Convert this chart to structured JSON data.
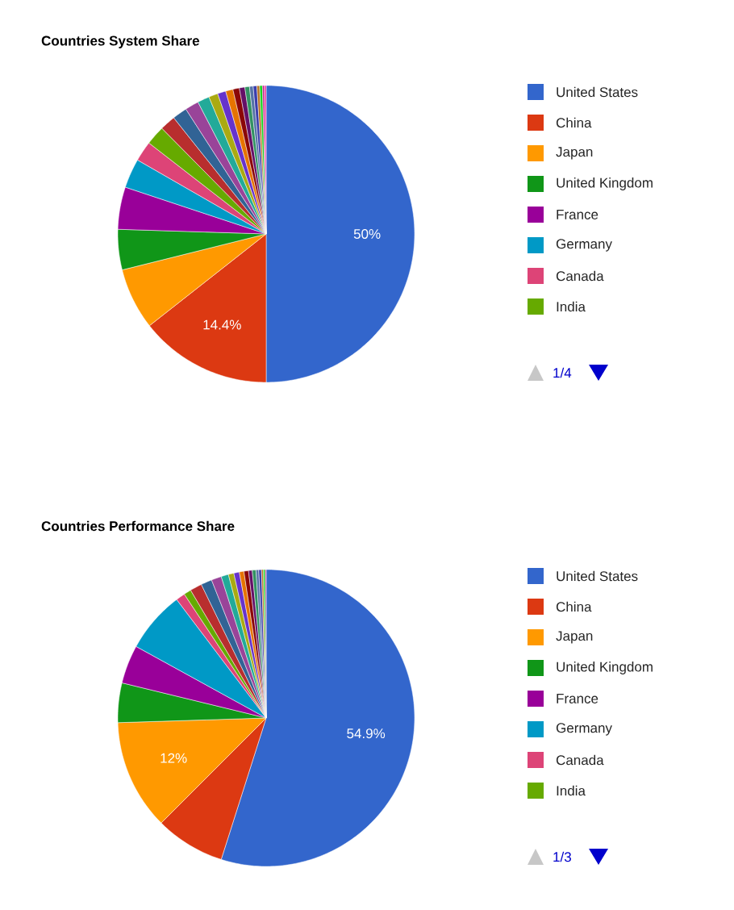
{
  "chart_data": [
    {
      "type": "pie",
      "title": "Countries System Share",
      "legend": "right",
      "annotations": [
        "1/4"
      ],
      "categories": [
        "United States",
        "China",
        "Japan",
        "United Kingdom",
        "France",
        "Germany",
        "Canada",
        "India",
        null,
        null,
        null,
        null,
        null,
        null,
        null,
        null,
        null,
        null,
        null,
        null,
        null,
        null,
        null,
        null
      ],
      "values": [
        50,
        14.4,
        6.7,
        4.4,
        4.6,
        3.2,
        2.2,
        2.1,
        1.7,
        1.6,
        1.5,
        1.3,
        1.0,
        0.9,
        0.8,
        0.7,
        0.6,
        0.5,
        0.4,
        0.4,
        0.3,
        0.3,
        0.2,
        0.2
      ],
      "value_labels": [
        "50%",
        "14.4%",
        null,
        null,
        null,
        null,
        null,
        null,
        null,
        null,
        null,
        null,
        null,
        null,
        null,
        null,
        null,
        null,
        null,
        null,
        null,
        null,
        null,
        null
      ],
      "colors": [
        "#3366cc",
        "#dc3912",
        "#ff9900",
        "#109618",
        "#990099",
        "#0099c6",
        "#dd4477",
        "#66aa00",
        "#b82e2e",
        "#316395",
        "#994499",
        "#22aa99",
        "#aaaa11",
        "#6633cc",
        "#e67300",
        "#8b0707",
        "#651067",
        "#329262",
        "#5574a6",
        "#3b3eac",
        "#b77322",
        "#16d620",
        "#b91383",
        "#f4359e"
      ]
    },
    {
      "type": "pie",
      "title": "Countries Performance Share",
      "legend": "right",
      "annotations": [
        "1/3"
      ],
      "categories": [
        "United States",
        "China",
        "Japan",
        "United Kingdom",
        "France",
        "Germany",
        "Canada",
        "India",
        null,
        null,
        null,
        null,
        null,
        null,
        null,
        null,
        null,
        null,
        null,
        null,
        null,
        null,
        null
      ],
      "values": [
        54.9,
        7.6,
        12,
        4.3,
        4.2,
        6.7,
        1.0,
        0.8,
        1.3,
        1.2,
        1.1,
        0.8,
        0.6,
        0.6,
        0.5,
        0.5,
        0.4,
        0.4,
        0.3,
        0.3,
        0.2,
        0.2,
        0.1
      ],
      "value_labels": [
        "54.9%",
        null,
        "12%",
        null,
        null,
        null,
        null,
        null,
        null,
        null,
        null,
        null,
        null,
        null,
        null,
        null,
        null,
        null,
        null,
        null,
        null,
        null,
        null
      ],
      "colors": [
        "#3366cc",
        "#dc3912",
        "#ff9900",
        "#109618",
        "#990099",
        "#0099c6",
        "#dd4477",
        "#66aa00",
        "#b82e2e",
        "#316395",
        "#994499",
        "#22aa99",
        "#aaaa11",
        "#6633cc",
        "#e67300",
        "#8b0707",
        "#651067",
        "#329262",
        "#5574a6",
        "#3b3eac",
        "#b77322",
        "#16d620",
        "#b91383"
      ]
    }
  ]
}
